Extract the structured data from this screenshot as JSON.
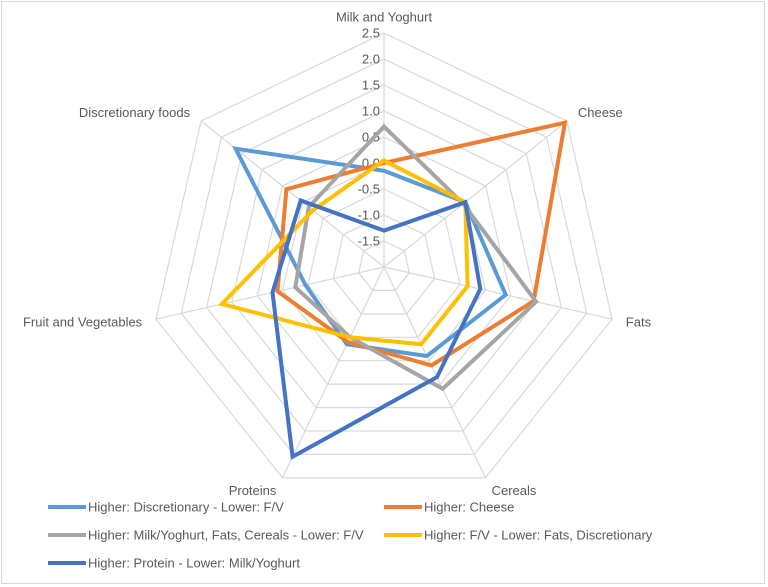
{
  "chart_data": {
    "type": "radar",
    "categories": [
      "Milk and Yoghurt",
      "Cheese",
      "Fats",
      "Cereals",
      "Proteins",
      "Fruit and Vegetables",
      "Discretionary foods"
    ],
    "r_ticks": [
      "-1.5",
      "-1.0",
      "-0.5",
      "0.0",
      "0.5",
      "1.0",
      "1.5",
      "2.0",
      "2.5"
    ],
    "rlim": [
      -2,
      2.5
    ],
    "grid": true,
    "legend_position": "bottom",
    "series": [
      {
        "name": "Higher: Discretionary - Lower: F/V",
        "color": "#5b9bd5",
        "values": [
          -0.15,
          0.0,
          0.4,
          -0.1,
          -0.35,
          -0.45,
          1.65
        ]
      },
      {
        "name": "Higher: Cheese",
        "color": "#ed7d31",
        "values": [
          0.0,
          2.45,
          0.95,
          0.1,
          -0.4,
          0.1,
          0.4
        ]
      },
      {
        "name": "Higher: Milk/Yoghurt, Fats, Cereals - Lower: F/V",
        "color": "#a5a5a5",
        "values": [
          0.7,
          -0.05,
          1.0,
          0.6,
          -0.5,
          -0.25,
          -0.15
        ]
      },
      {
        "name": "Higher: F/V - Lower: Fats, Discretionary",
        "color": "#ffc000",
        "values": [
          0.05,
          0.0,
          -0.35,
          -0.35,
          -0.5,
          1.2,
          -0.25
        ]
      },
      {
        "name": "Higher: Protein - Lower: Milk/Yoghurt",
        "color": "#4472c4",
        "values": [
          -1.3,
          0.0,
          -0.1,
          0.35,
          2.05,
          0.2,
          0.05
        ]
      }
    ]
  }
}
